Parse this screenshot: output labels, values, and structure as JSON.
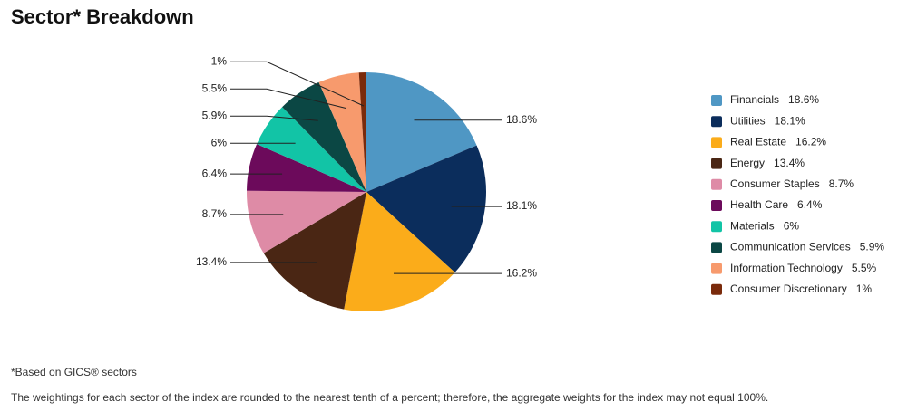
{
  "chart_data": {
    "type": "pie",
    "title": "Sector* Breakdown",
    "categories": [
      "Financials",
      "Utilities",
      "Real Estate",
      "Energy",
      "Consumer Staples",
      "Health Care",
      "Materials",
      "Communication Services",
      "Information Technology",
      "Consumer Discretionary"
    ],
    "values": [
      18.6,
      18.1,
      16.2,
      13.4,
      8.7,
      6.4,
      6,
      5.9,
      5.5,
      1
    ],
    "value_labels": [
      "18.6%",
      "18.1%",
      "16.2%",
      "13.4%",
      "8.7%",
      "6.4%",
      "6%",
      "5.9%",
      "5.5%",
      "1%"
    ],
    "colors": [
      "#4f97c4",
      "#0b2d5c",
      "#fbac1a",
      "#4a2614",
      "#de8ba6",
      "#6c0a5b",
      "#12c4a6",
      "#0b4744",
      "#f79a6d",
      "#7a2a0b"
    ],
    "notes": [
      "*Based on GICS® sectors",
      "The weightings for each sector of the index are rounded to the nearest tenth of a percent; therefore, the aggregate weights for the index may not equal 100%."
    ]
  }
}
